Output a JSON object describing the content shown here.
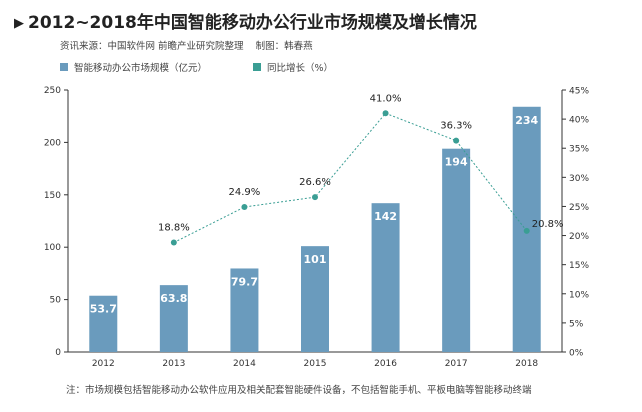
{
  "header": {
    "marker": "▶",
    "title": "2012~2018年中国智能移动办公行业市场规模及增长情况",
    "source": "资讯来源：中国软件网 前瞻产业研究院整理",
    "author": "制图：韩春燕"
  },
  "note": "注：市场规模包括智能移动办公软件应用及相关配套智能硬件设备，不包括智能手机、平板电脑等智能移动终端",
  "colors": {
    "bar": "#6a9bbd",
    "line": "#3a9e94",
    "axis": "#333333"
  },
  "chart_data": {
    "type": "bar+line",
    "categories": [
      "2012",
      "2013",
      "2014",
      "2015",
      "2016",
      "2017",
      "2018"
    ],
    "series": [
      {
        "name": "智能移动办公市场规模（亿元）",
        "type": "bar",
        "axis": "left",
        "values": [
          53.7,
          63.8,
          79.7,
          101,
          142,
          194,
          234
        ],
        "labels": [
          "53.7",
          "63.8",
          "79.7",
          "101",
          "142",
          "194",
          "234"
        ]
      },
      {
        "name": "同比增长（%）",
        "type": "line",
        "axis": "right",
        "values": [
          null,
          18.8,
          24.9,
          26.6,
          41.0,
          36.3,
          20.8
        ],
        "labels": [
          "",
          "18.8%",
          "24.9%",
          "26.6%",
          "41.0%",
          "36.3%",
          "20.8%"
        ]
      }
    ],
    "left_axis": {
      "ylim": [
        0,
        250
      ],
      "ticks": [
        "0",
        "50",
        "100",
        "150",
        "200",
        "250"
      ]
    },
    "right_axis": {
      "ylim": [
        0,
        45
      ],
      "ticks": [
        "0%",
        "5%",
        "10%",
        "15%",
        "20%",
        "25%",
        "30%",
        "35%",
        "40%",
        "45%"
      ]
    },
    "grid": false,
    "legend_position": "top-left"
  }
}
